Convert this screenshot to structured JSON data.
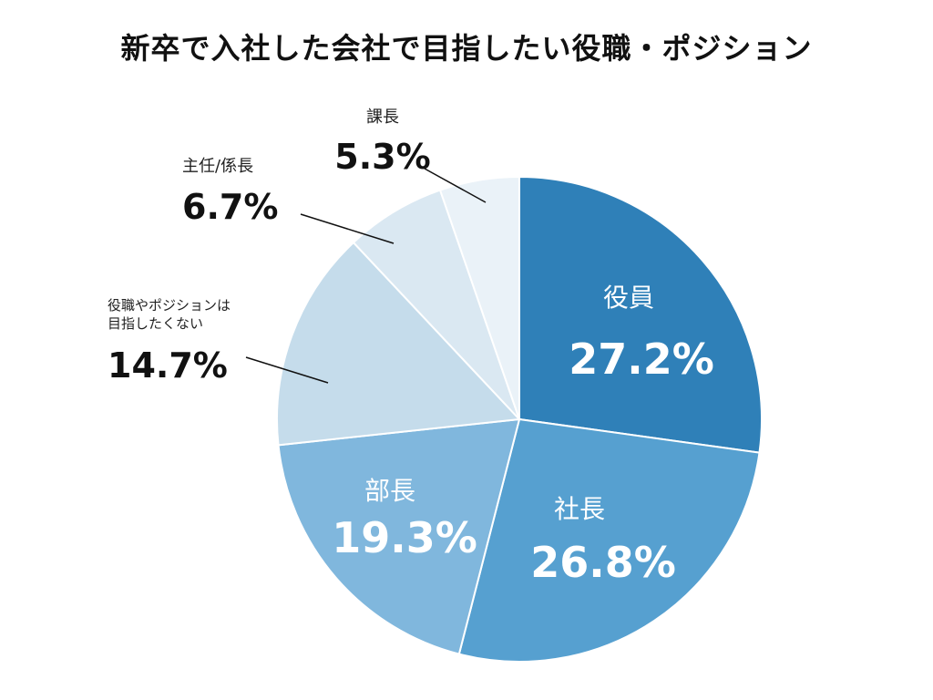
{
  "chart_data": {
    "type": "pie",
    "title": "新卒で入社した会社で目指したい役職・ポジション",
    "slices": [
      {
        "label": "役員",
        "value_label": "27.2%",
        "value": 27.2,
        "color": "#2f80b8"
      },
      {
        "label": "社長",
        "value_label": "26.8%",
        "value": 26.8,
        "color": "#56a0d0"
      },
      {
        "label": "部長",
        "value_label": "19.3%",
        "value": 19.3,
        "color": "#80b7dd"
      },
      {
        "label_lines": [
          "役職やポジションは",
          "目指したくない"
        ],
        "value_label": "14.7%",
        "value": 14.7,
        "color": "#c5dceb"
      },
      {
        "label": "主任/係長",
        "value_label": "6.7%",
        "value": 6.7,
        "color": "#dae8f2"
      },
      {
        "label": "課長",
        "value_label": "5.3%",
        "value": 5.3,
        "color": "#eaf2f8"
      }
    ]
  }
}
